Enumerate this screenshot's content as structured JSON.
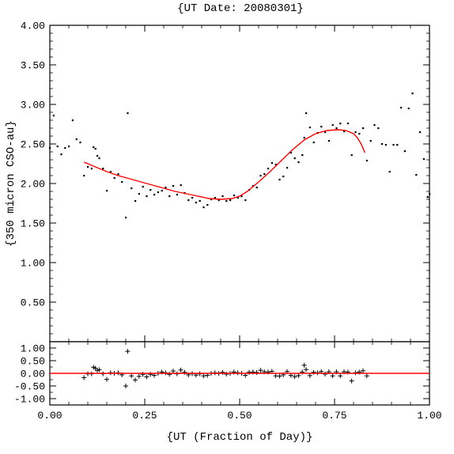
{
  "chart_data": [
    {
      "type": "scatter",
      "title": "{UT Date: 20080301}",
      "xlabel": "",
      "ylabel": "{350 micron CSO-au}",
      "xlim": [
        0.0,
        1.0
      ],
      "ylim": [
        0.0,
        4.0
      ],
      "xticks": [
        "0.00",
        "0.25",
        "0.50",
        "0.75",
        "1.00"
      ],
      "yticks": [
        "0.50",
        "1.00",
        "1.50",
        "2.00",
        "2.50",
        "3.00",
        "3.50",
        "4.00"
      ],
      "grid": false,
      "series": [
        {
          "style": "dots",
          "color": "#000000",
          "x": [
            0.0,
            0.01,
            0.02,
            0.03,
            0.04,
            0.05,
            0.06,
            0.07,
            0.08,
            0.09,
            0.1,
            0.11,
            0.115,
            0.12,
            0.125,
            0.13,
            0.14,
            0.15,
            0.16,
            0.17,
            0.18,
            0.19,
            0.2,
            0.205,
            0.215,
            0.225,
            0.235,
            0.245,
            0.255,
            0.265,
            0.275,
            0.285,
            0.295,
            0.305,
            0.315,
            0.325,
            0.335,
            0.345,
            0.355,
            0.365,
            0.375,
            0.385,
            0.395,
            0.405,
            0.415,
            0.425,
            0.435,
            0.445,
            0.455,
            0.465,
            0.475,
            0.485,
            0.495,
            0.505,
            0.515,
            0.525,
            0.535,
            0.545,
            0.555,
            0.565,
            0.575,
            0.585,
            0.595,
            0.605,
            0.615,
            0.625,
            0.635,
            0.645,
            0.655,
            0.665,
            0.67,
            0.675,
            0.685,
            0.695,
            0.705,
            0.715,
            0.725,
            0.735,
            0.745,
            0.755,
            0.765,
            0.775,
            0.785,
            0.795,
            0.805,
            0.815,
            0.825,
            0.835,
            0.845,
            0.855,
            0.865,
            0.875,
            0.885,
            0.895,
            0.905,
            0.915,
            0.925,
            0.935,
            0.945,
            0.955,
            0.965,
            0.975,
            0.985,
            0.995,
            1.0
          ],
          "y": [
            2.45,
            2.86,
            2.47,
            2.37,
            2.45,
            2.47,
            2.8,
            2.56,
            2.52,
            2.1,
            2.21,
            2.19,
            2.46,
            2.44,
            2.35,
            2.32,
            2.19,
            1.91,
            2.15,
            2.07,
            2.12,
            2.02,
            1.57,
            2.89,
            1.94,
            1.78,
            1.87,
            1.96,
            1.84,
            1.92,
            1.86,
            1.89,
            1.91,
            1.95,
            1.84,
            1.97,
            1.86,
            1.98,
            1.88,
            1.79,
            1.82,
            1.76,
            1.78,
            1.7,
            1.73,
            1.8,
            1.82,
            1.79,
            1.84,
            1.78,
            1.79,
            1.85,
            1.82,
            1.84,
            1.79,
            1.92,
            1.97,
            1.95,
            2.1,
            2.12,
            2.19,
            2.26,
            2.24,
            2.05,
            2.09,
            2.2,
            2.39,
            2.32,
            2.27,
            2.36,
            2.58,
            2.89,
            2.71,
            2.52,
            2.64,
            2.72,
            2.65,
            2.54,
            2.74,
            2.7,
            2.76,
            2.66,
            2.76,
            2.36,
            2.65,
            2.63,
            2.7,
            2.29,
            2.54,
            2.74,
            2.7,
            2.5,
            2.49,
            2.15,
            2.49,
            2.49,
            2.96,
            2.41,
            2.95,
            3.14,
            2.11,
            2.65,
            2.31,
            1.83,
            1.87
          ]
        },
        {
          "style": "line",
          "color": "#ff0000",
          "x": [
            0.09,
            0.12,
            0.15,
            0.18,
            0.21,
            0.24,
            0.27,
            0.3,
            0.33,
            0.36,
            0.39,
            0.42,
            0.45,
            0.48,
            0.5,
            0.52,
            0.55,
            0.58,
            0.61,
            0.64,
            0.67,
            0.7,
            0.73,
            0.76,
            0.78,
            0.8,
            0.81,
            0.82,
            0.83
          ],
          "y": [
            2.27,
            2.21,
            2.15,
            2.1,
            2.06,
            2.02,
            1.98,
            1.94,
            1.9,
            1.87,
            1.84,
            1.81,
            1.8,
            1.81,
            1.84,
            1.9,
            2.02,
            2.15,
            2.29,
            2.43,
            2.55,
            2.63,
            2.67,
            2.68,
            2.67,
            2.63,
            2.58,
            2.5,
            2.39
          ]
        }
      ]
    },
    {
      "type": "scatter",
      "title": "",
      "xlabel": "{UT (Fraction of Day)}",
      "ylabel": "",
      "xlim": [
        0.0,
        1.0
      ],
      "ylim": [
        -1.25,
        1.25
      ],
      "xticks": [
        "0.00",
        "0.25",
        "0.50",
        "0.75",
        "1.00"
      ],
      "yticks": [
        "1.00",
        "0.50",
        "0.00",
        "-0.50",
        "-1.00"
      ],
      "grid": false,
      "series": [
        {
          "style": "plus",
          "color": "#000000",
          "x": [
            0.09,
            0.1,
            0.11,
            0.115,
            0.12,
            0.125,
            0.13,
            0.14,
            0.15,
            0.16,
            0.17,
            0.18,
            0.19,
            0.2,
            0.205,
            0.215,
            0.225,
            0.235,
            0.245,
            0.255,
            0.265,
            0.275,
            0.285,
            0.295,
            0.305,
            0.315,
            0.325,
            0.335,
            0.345,
            0.355,
            0.365,
            0.375,
            0.385,
            0.395,
            0.405,
            0.415,
            0.425,
            0.435,
            0.445,
            0.455,
            0.465,
            0.475,
            0.485,
            0.495,
            0.505,
            0.515,
            0.525,
            0.535,
            0.545,
            0.555,
            0.565,
            0.575,
            0.585,
            0.595,
            0.605,
            0.615,
            0.625,
            0.635,
            0.645,
            0.655,
            0.665,
            0.67,
            0.675,
            0.685,
            0.695,
            0.705,
            0.715,
            0.725,
            0.735,
            0.745,
            0.755,
            0.765,
            0.775,
            0.785,
            0.795,
            0.805,
            0.815,
            0.825,
            0.835
          ],
          "y": [
            -0.17,
            -0.02,
            -0.02,
            0.24,
            0.2,
            0.12,
            0.14,
            -0.02,
            -0.24,
            0.02,
            0.0,
            0.02,
            -0.06,
            -0.5,
            0.87,
            -0.1,
            -0.26,
            -0.12,
            -0.04,
            -0.14,
            -0.04,
            -0.08,
            0.0,
            0.05,
            0.02,
            -0.04,
            0.09,
            -0.02,
            0.13,
            0.04,
            -0.06,
            -0.01,
            -0.07,
            -0.02,
            -0.1,
            -0.08,
            0.0,
            0.02,
            -0.01,
            0.04,
            -0.03,
            0.0,
            0.05,
            0.02,
            0.0,
            -0.08,
            0.04,
            0.05,
            0.03,
            0.12,
            0.06,
            0.05,
            0.08,
            -0.1,
            -0.11,
            -0.06,
            0.07,
            -0.08,
            -0.13,
            -0.09,
            0.05,
            0.32,
            0.15,
            -0.09,
            0.04,
            0.02,
            0.07,
            -0.03,
            0.06,
            -0.1,
            0.06,
            -0.1,
            0.06,
            0.05,
            -0.3,
            0.02,
            0.05,
            0.1,
            -0.1
          ]
        },
        {
          "style": "line",
          "color": "#ff0000",
          "x": [
            0.0,
            1.0
          ],
          "y": [
            0.0,
            0.0
          ]
        }
      ]
    }
  ]
}
